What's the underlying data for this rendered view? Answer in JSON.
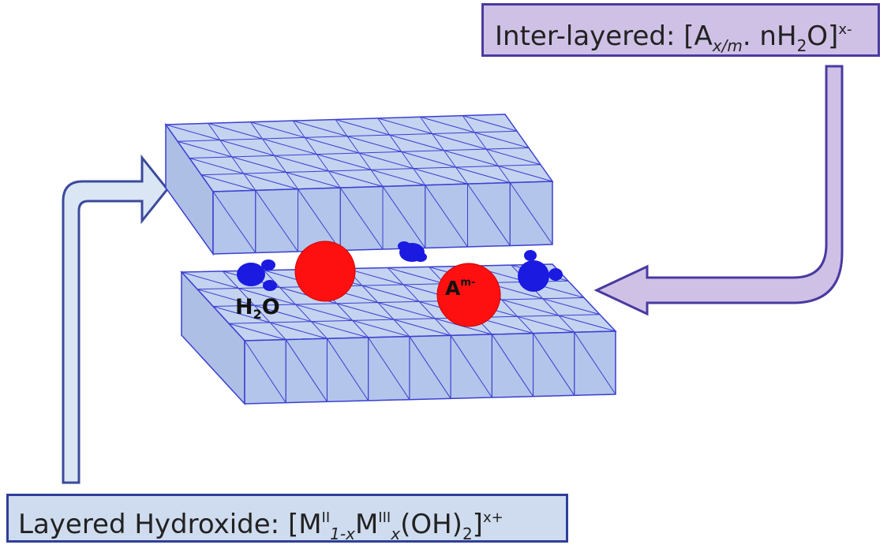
{
  "interlayer_label": {
    "prefix": "Inter-layered: [A",
    "sub1": "x/m",
    "mid": ". n",
    "h": "H",
    "two": "2",
    "o": "O]",
    "charge": "x-"
  },
  "layer_label": {
    "prefix": "Layered Hydroxide: [M",
    "sup1": "II",
    "sub1": "1-x",
    "m": "M",
    "sup2": "III",
    "sub2": "x",
    "oh": "(OH)",
    "two": "2",
    "close": "]",
    "charge": "x+"
  },
  "water_label": {
    "h": "H",
    "two": "2",
    "o": "O"
  },
  "anion_label": {
    "a": "A",
    "charge": "m-"
  },
  "colors": {
    "layer_fill": "#b8c9ec",
    "layer_stroke": "#3a3fd0",
    "anion": "#ff1010",
    "water": "#1a1ae0",
    "arrow_left_fill": "#dbe6f5",
    "arrow_left_stroke": "#3b4a9a",
    "arrow_right_fill": "#cfc1e6",
    "arrow_right_stroke": "#4a3aa0"
  }
}
